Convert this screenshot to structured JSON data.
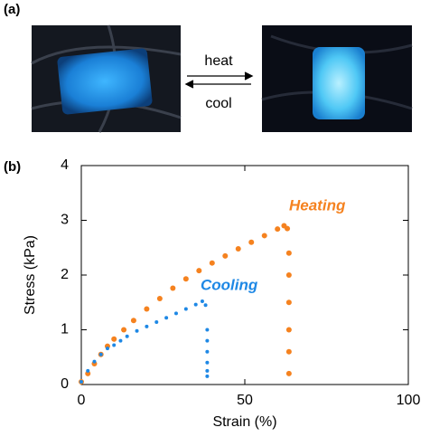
{
  "figure": {
    "panel_a": "(a)",
    "panel_b": "(b)",
    "heat": "heat",
    "cool": "cool"
  },
  "chart_data": {
    "type": "scatter",
    "x_label": "Strain (%)",
    "y_label": "Stress (kPa)",
    "xlim": [
      0,
      100
    ],
    "xticks": [
      0,
      50,
      100
    ],
    "ylim": [
      0,
      4
    ],
    "yticks": [
      0,
      1,
      2,
      3,
      4
    ],
    "series": [
      {
        "name": "Heating",
        "color": "#f5821f",
        "x": [
          0,
          2,
          4,
          6,
          8,
          10,
          13,
          16,
          20,
          24,
          28,
          32,
          36,
          40,
          44,
          48,
          52,
          56,
          60,
          62,
          63,
          63.5,
          63.5,
          63.5,
          63.5,
          63.5,
          63.5
        ],
        "values": [
          0.05,
          0.2,
          0.38,
          0.55,
          0.7,
          0.83,
          1.0,
          1.17,
          1.38,
          1.57,
          1.76,
          1.93,
          2.08,
          2.22,
          2.35,
          2.48,
          2.6,
          2.72,
          2.84,
          2.9,
          2.85,
          2.4,
          2.0,
          1.5,
          1.0,
          0.6,
          0.2
        ]
      },
      {
        "name": "Cooling",
        "color": "#1e88e5",
        "x": [
          0,
          2,
          4,
          6,
          8,
          10,
          12,
          14,
          17,
          20,
          23,
          26,
          29,
          32,
          35,
          37,
          38,
          38.5,
          38.5,
          38.5,
          38.5,
          38.5,
          38.5
        ],
        "values": [
          0.05,
          0.25,
          0.42,
          0.55,
          0.66,
          0.72,
          0.8,
          0.88,
          0.98,
          1.06,
          1.14,
          1.22,
          1.3,
          1.38,
          1.46,
          1.52,
          1.45,
          1.0,
          0.8,
          0.6,
          0.4,
          0.25,
          0.15
        ]
      }
    ]
  }
}
